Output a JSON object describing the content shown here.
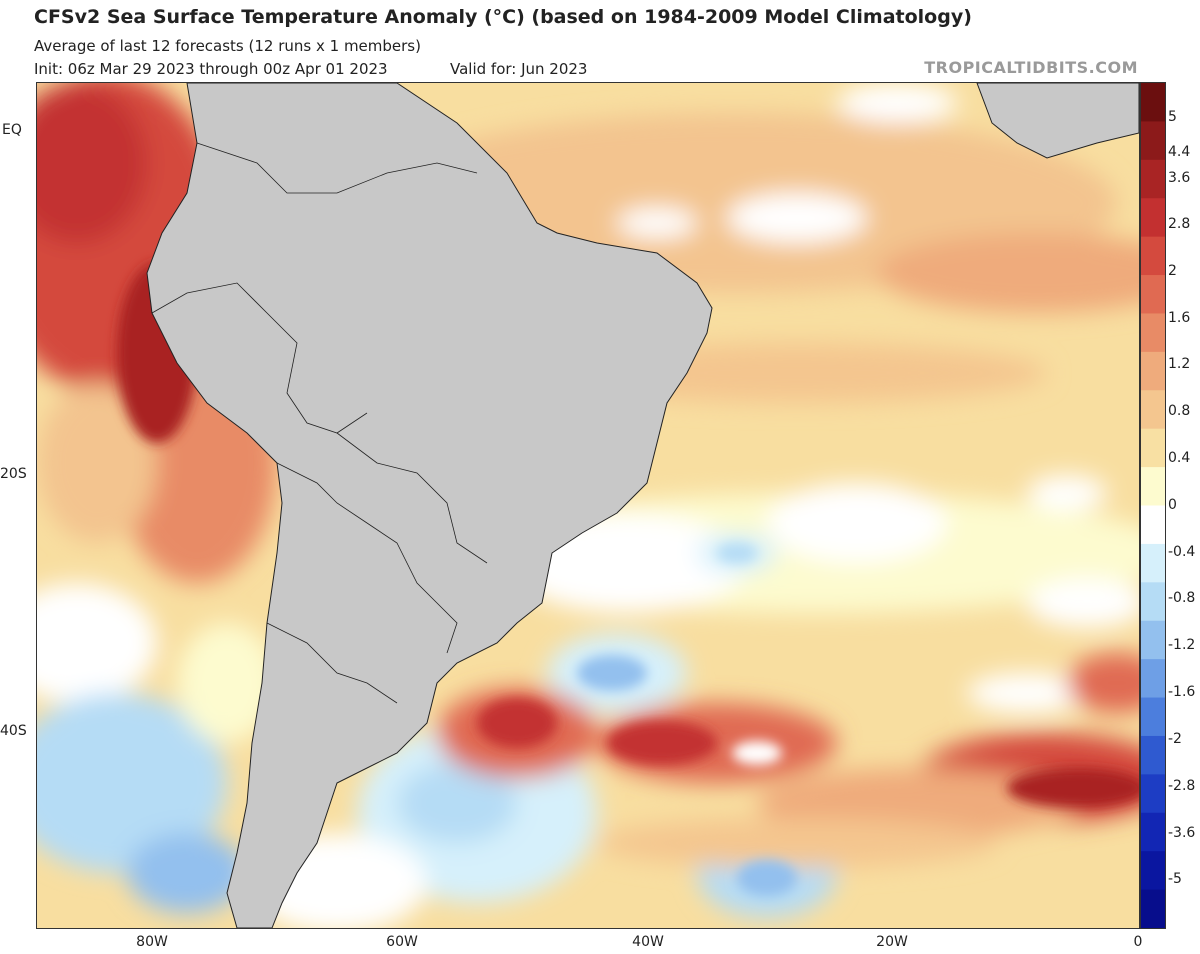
{
  "header": {
    "title": "CFSv2 Sea Surface Temperature Anomaly (°C) (based on 1984-2009 Model Climatology)",
    "subtitle": "Average of last 12 forecasts (12 runs x 1 members)",
    "init": "Init: 06z Mar 29 2023 through 00z Apr 01 2023",
    "valid": "Valid for: Jun 2023",
    "brand": "TROPICALTIDBITS.COM"
  },
  "axes": {
    "y_labels": [
      "EQ",
      "20S",
      "40S"
    ],
    "x_labels": [
      "80W",
      "60W",
      "40W",
      "20W",
      "0"
    ]
  },
  "colorbar": {
    "labels": [
      "5",
      "4.4",
      "3.6",
      "2.8",
      "2",
      "1.6",
      "1.2",
      "0.8",
      "0.4",
      "0",
      "-0.4",
      "-0.8",
      "-1.2",
      "-1.6",
      "-2",
      "-2.8",
      "-3.6",
      "-5"
    ],
    "colors": [
      "#6b0f0f",
      "#8c1a1a",
      "#a92424",
      "#c33030",
      "#d44a3e",
      "#e06a52",
      "#e88b66",
      "#efab7c",
      "#f4c68f",
      "#f8e0a3",
      "#fdfbcf",
      "#ffffff",
      "#d6f0fb",
      "#b5dcf5",
      "#93c0ee",
      "#6e9fe6",
      "#4c7edd",
      "#2f5ad0",
      "#1d3dc4",
      "#1226b4",
      "#0a16a0",
      "#070d8c"
    ]
  },
  "map": {
    "land_color": "#c8c8c8",
    "ocean_base": "#f8dea0"
  }
}
